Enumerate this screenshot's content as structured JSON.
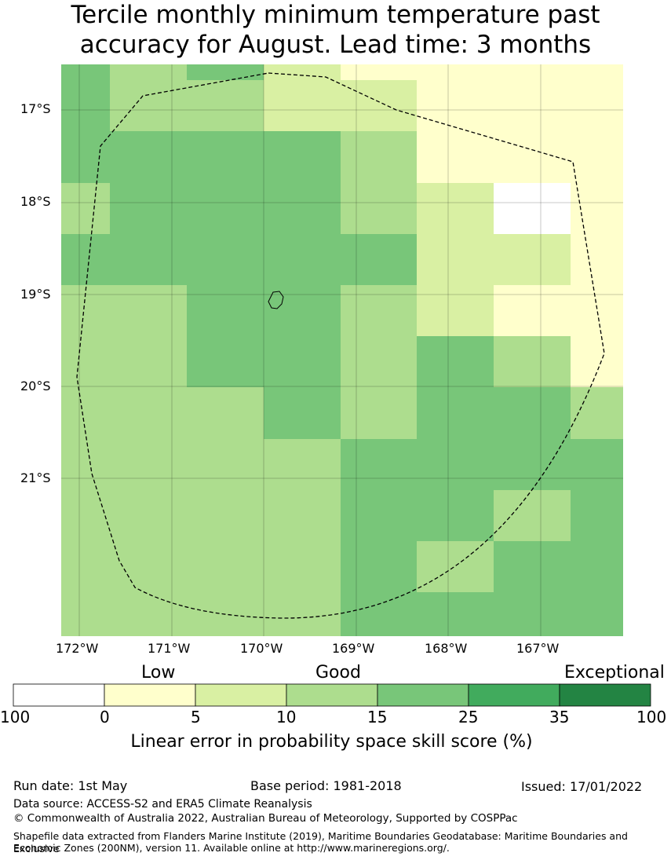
{
  "title": {
    "line1": "Tercile monthly minimum temperature past",
    "line2": "accuracy for August. Lead time: 3 months"
  },
  "map": {
    "lat_labels": [
      "17°S",
      "18°S",
      "19°S",
      "20°S",
      "21°S"
    ],
    "lon_labels": [
      "172°W",
      "171°W",
      "170°W",
      "169°W",
      "168°W",
      "167°W"
    ],
    "grid": [
      [
        4,
        3,
        4,
        2,
        1,
        1,
        1
      ],
      [
        4,
        3,
        3,
        2,
        2,
        1,
        1
      ],
      [
        4,
        4,
        4,
        4,
        3,
        1,
        1
      ],
      [
        3,
        4,
        4,
        4,
        3,
        2,
        0
      ],
      [
        4,
        4,
        4,
        4,
        4,
        2,
        2
      ],
      [
        3,
        3,
        4,
        4,
        3,
        2,
        1
      ],
      [
        3,
        3,
        4,
        4,
        3,
        4,
        3
      ],
      [
        3,
        3,
        3,
        4,
        3,
        4,
        4
      ],
      [
        3,
        3,
        3,
        3,
        4,
        4,
        4
      ],
      [
        3,
        3,
        3,
        3,
        4,
        4,
        3
      ],
      [
        3,
        3,
        3,
        3,
        4,
        3,
        4
      ],
      [
        3,
        3,
        3,
        3,
        4,
        4,
        4
      ],
      [
        4,
        3,
        2,
        3,
        4,
        3,
        4
      ],
      [
        4,
        3,
        3,
        3,
        4,
        4,
        4
      ]
    ]
  },
  "legend": {
    "categories": [
      "Low",
      "Good",
      "Exceptional"
    ],
    "ticks": [
      "100",
      "0",
      "5",
      "10",
      "15",
      "25",
      "35",
      "100"
    ],
    "colors": [
      "#ffffff",
      "#ffffcc",
      "#d9f0a3",
      "#addd8e",
      "#78c679",
      "#41ab5d",
      "#238443"
    ],
    "title": "Linear error in probability space skill score (%)"
  },
  "footer": {
    "run_date": "Run date: 1st May",
    "base_period": "Base period: 1981-2018",
    "issued": "Issued: 17/01/2022",
    "data_source": "Data source: ACCESS-S2 and ERA5 Climate Reanalysis",
    "copyright": "© Commonwealth of Australia 2022, Australian Bureau of Meteorology, Supported by COSPPac",
    "shapefile_line1": "Shapefile data extracted from Flanders Marine Institute (2019), Maritime Boundaries Geodatabase: Maritime Boundaries and Exclusive",
    "shapefile_line2": "Economic Zones (200NM), version 11. Available online at http://www.marineregions.org/."
  }
}
